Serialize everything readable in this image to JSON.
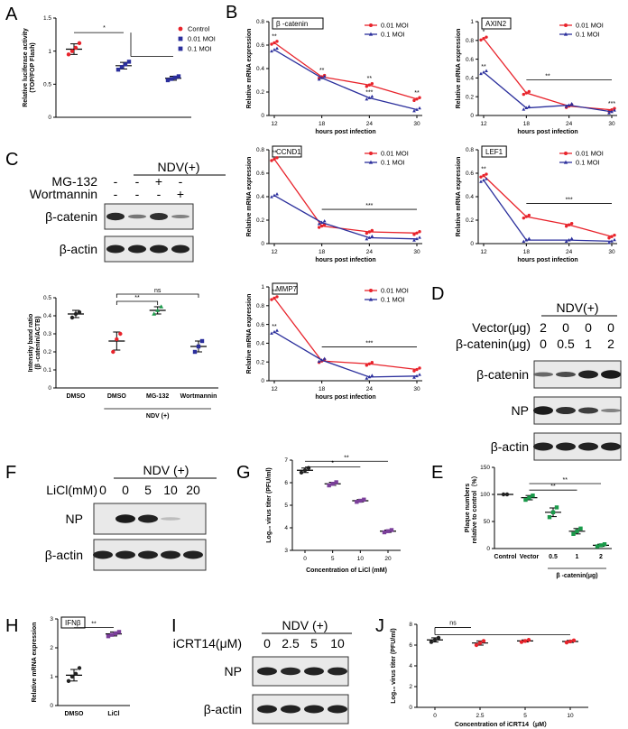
{
  "panels": {
    "A": "A",
    "B": "B",
    "C": "C",
    "D": "D",
    "E": "E",
    "F": "F",
    "G": "G",
    "H": "H",
    "I": "I",
    "J": "J"
  },
  "colors": {
    "red": "#e8232b",
    "blue": "#2b2f9c",
    "green": "#1a9a4a",
    "black": "#222222",
    "purple": "#7b3f9a"
  },
  "chart_data": [
    {
      "id": "A",
      "type": "scatter",
      "ylabel": "Relative luciferase activity\n(TOP/FOP Flash)",
      "ylim": [
        0,
        1.5
      ],
      "yticks": [
        0,
        0.5,
        1.0,
        1.5
      ],
      "legend": [
        {
          "name": "Control",
          "marker": "circle",
          "color": "red"
        },
        {
          "name": "0.01 MOI",
          "marker": "square",
          "color": "blue"
        },
        {
          "name": "0.1 MOI",
          "marker": "square",
          "color": "blue"
        }
      ],
      "groups": [
        {
          "name": "Control",
          "mean": 1.03,
          "sd": 0.08,
          "points": [
            0.95,
            1.0,
            1.05,
            1.12
          ],
          "color": "red",
          "marker": "circle"
        },
        {
          "name": "0.01 MOI",
          "mean": 0.78,
          "sd": 0.05,
          "points": [
            0.72,
            0.76,
            0.8,
            0.84
          ],
          "color": "blue",
          "marker": "square"
        },
        {
          "name": "0.1 MOI",
          "mean": 0.59,
          "sd": 0.03,
          "points": [
            0.56,
            0.58,
            0.6,
            0.62
          ],
          "color": "blue",
          "marker": "square"
        }
      ],
      "sig": [
        {
          "text": "*"
        }
      ]
    },
    {
      "id": "B1",
      "type": "line",
      "box": "β -catenin",
      "ylabel": "Relative mRNA expression",
      "xlabel": "hours post infection",
      "x": [
        12,
        18,
        24,
        30
      ],
      "ylim": [
        0,
        0.8
      ],
      "yticks": [
        0,
        0.2,
        0.4,
        0.6,
        0.8
      ],
      "series": [
        {
          "name": "0.01 MOI",
          "values": [
            0.62,
            0.33,
            0.26,
            0.14
          ],
          "color": "red",
          "marker": "circle"
        },
        {
          "name": "0.1 MOI",
          "values": [
            0.56,
            0.32,
            0.15,
            0.05
          ],
          "color": "blue",
          "marker": "triangle"
        }
      ],
      "sig": [
        {
          "x": 12,
          "text": "**"
        },
        {
          "x": 18,
          "text": "**"
        },
        {
          "x": 24,
          "text": "**"
        },
        {
          "x": 24,
          "text": "***",
          "low": true
        },
        {
          "x": 30,
          "text": "**"
        }
      ]
    },
    {
      "id": "B2",
      "type": "line",
      "box": "AXIN2",
      "ylabel": "Relative mRNA expression",
      "xlabel": "hours post infection",
      "x": [
        12,
        18,
        24,
        30
      ],
      "ylim": [
        0,
        1.0
      ],
      "yticks": [
        0,
        0.2,
        0.4,
        0.6,
        0.8,
        1.0
      ],
      "series": [
        {
          "name": "0.01 MOI",
          "values": [
            0.82,
            0.24,
            0.1,
            0.06
          ],
          "color": "red",
          "marker": "circle"
        },
        {
          "name": "0.1 MOI",
          "values": [
            0.46,
            0.08,
            0.11,
            0.04
          ],
          "color": "blue",
          "marker": "triangle"
        }
      ],
      "sig": [
        {
          "x": 12,
          "text": "*"
        },
        {
          "x": 12,
          "text": "**",
          "low": true
        },
        {
          "x": 21,
          "text": "**",
          "bar": true
        },
        {
          "x": 30,
          "text": "***"
        }
      ]
    },
    {
      "id": "B3",
      "type": "line",
      "box": "CCND1",
      "ylabel": "Relative mRNA expression",
      "xlabel": "hours post infection",
      "x": [
        12,
        18,
        24,
        30
      ],
      "ylim": [
        0,
        0.8
      ],
      "yticks": [
        0,
        0.2,
        0.4,
        0.6,
        0.8
      ],
      "series": [
        {
          "name": "0.01 MOI",
          "values": [
            0.72,
            0.15,
            0.1,
            0.09
          ],
          "color": "red",
          "marker": "circle"
        },
        {
          "name": "0.1 MOI",
          "values": [
            0.41,
            0.18,
            0.05,
            0.04
          ],
          "color": "blue",
          "marker": "triangle"
        }
      ],
      "sig": [
        {
          "x": 12,
          "text": "**"
        },
        {
          "x": 24,
          "text": "***",
          "bar": true
        }
      ]
    },
    {
      "id": "B4",
      "type": "line",
      "box": "LEF1",
      "ylabel": "Relative mRNA expression",
      "xlabel": "hours post infection",
      "x": [
        12,
        18,
        24,
        30
      ],
      "ylim": [
        0,
        0.8
      ],
      "yticks": [
        0,
        0.2,
        0.4,
        0.6,
        0.8
      ],
      "series": [
        {
          "name": "0.01 MOI",
          "values": [
            0.58,
            0.23,
            0.16,
            0.06
          ],
          "color": "red",
          "marker": "circle"
        },
        {
          "name": "0.1 MOI",
          "values": [
            0.54,
            0.03,
            0.03,
            0.02
          ],
          "color": "blue",
          "marker": "triangle"
        }
      ],
      "sig": [
        {
          "x": 12,
          "text": "**"
        },
        {
          "x": 24,
          "text": "***",
          "bar": true
        }
      ]
    },
    {
      "id": "B5",
      "type": "line",
      "box": "MMP7",
      "ylabel": "Relative mRNA expression",
      "xlabel": "hours post infection",
      "x": [
        12,
        18,
        24,
        30
      ],
      "ylim": [
        0,
        1.0
      ],
      "yticks": [
        0,
        0.2,
        0.4,
        0.6,
        0.8,
        1.0
      ],
      "series": [
        {
          "name": "0.01 MOI",
          "values": [
            0.88,
            0.21,
            0.18,
            0.12
          ],
          "color": "red",
          "marker": "circle"
        },
        {
          "name": "0.1 MOI",
          "values": [
            0.52,
            0.22,
            0.04,
            0.05
          ],
          "color": "blue",
          "marker": "triangle"
        }
      ],
      "sig": [
        {
          "x": 12,
          "text": "**"
        },
        {
          "x": 12,
          "text": "**",
          "low": true
        },
        {
          "x": 24,
          "text": "***",
          "bar": true
        }
      ]
    },
    {
      "id": "C2",
      "type": "scatter",
      "ylabel": "Intensity band ratio\n(β -catenin/ACTB)",
      "ylim": [
        0,
        0.5
      ],
      "yticks": [
        0,
        0.1,
        0.2,
        0.3,
        0.4,
        0.5
      ],
      "groups": [
        {
          "name": "DMSO",
          "mean": 0.41,
          "sd": 0.02,
          "points": [
            0.39,
            0.41,
            0.42
          ],
          "color": "black",
          "marker": "circle"
        },
        {
          "name": "DMSO",
          "mean": 0.26,
          "sd": 0.05,
          "points": [
            0.2,
            0.27,
            0.3
          ],
          "color": "red",
          "marker": "circle"
        },
        {
          "name": "MG-132",
          "mean": 0.43,
          "sd": 0.02,
          "points": [
            0.41,
            0.43,
            0.45
          ],
          "color": "green",
          "marker": "triangle"
        },
        {
          "name": "Wortmannin",
          "mean": 0.23,
          "sd": 0.03,
          "points": [
            0.2,
            0.23,
            0.26
          ],
          "color": "blue",
          "marker": "square"
        }
      ],
      "group_label": "NDV (+)",
      "sig": [
        {
          "text": "**"
        },
        {
          "text": "ns"
        }
      ]
    },
    {
      "id": "G",
      "type": "scatter",
      "ylabel": "Log₁₀ virus titer (PFU/ml)",
      "xlabel": "Concentration of LiCl (mM)",
      "ylim": [
        3,
        7
      ],
      "yticks": [
        3,
        4,
        5,
        6,
        7
      ],
      "groups": [
        {
          "name": "0",
          "mean": 6.55,
          "sd": 0.1,
          "points": [
            6.45,
            6.55,
            6.65
          ],
          "color": "black",
          "marker": "circle"
        },
        {
          "name": "5",
          "mean": 5.95,
          "sd": 0.07,
          "points": [
            5.88,
            5.95,
            6.02
          ],
          "color": "purple",
          "marker": "square"
        },
        {
          "name": "10",
          "mean": 5.2,
          "sd": 0.05,
          "points": [
            5.15,
            5.2,
            5.25
          ],
          "color": "purple",
          "marker": "square"
        },
        {
          "name": "20",
          "mean": 3.85,
          "sd": 0.05,
          "points": [
            3.8,
            3.85,
            3.9
          ],
          "color": "purple",
          "marker": "square"
        }
      ],
      "sig": [
        {
          "text": "**"
        },
        {
          "text": "*"
        }
      ]
    },
    {
      "id": "E",
      "type": "scatter",
      "ylabel": "Plaque numbers\nrelative to control（%）",
      "ylim": [
        0,
        150
      ],
      "yticks": [
        0,
        50,
        100,
        150
      ],
      "groups": [
        {
          "name": "Control",
          "mean": 100,
          "sd": 0,
          "points": [
            100,
            100
          ],
          "color": "black",
          "marker": "circle"
        },
        {
          "name": "Vector",
          "mean": 94,
          "sd": 4,
          "points": [
            90,
            94,
            98
          ],
          "color": "green",
          "marker": "square"
        },
        {
          "name": "0.5",
          "mean": 67,
          "sd": 8,
          "points": [
            58,
            67,
            76
          ],
          "color": "green",
          "marker": "square"
        },
        {
          "name": "1",
          "mean": 32,
          "sd": 5,
          "points": [
            27,
            32,
            37
          ],
          "color": "green",
          "marker": "square"
        },
        {
          "name": "2",
          "mean": 6,
          "sd": 2,
          "points": [
            4,
            6,
            8
          ],
          "color": "green",
          "marker": "square"
        }
      ],
      "group_label": "β -catenin(μg)",
      "sig": [
        {
          "text": "**"
        },
        {
          "text": "**"
        }
      ]
    },
    {
      "id": "H",
      "type": "scatter",
      "box": "IFNβ",
      "ylabel": "Relative mRNA expression",
      "ylim": [
        0,
        3
      ],
      "yticks": [
        0,
        1,
        2,
        3
      ],
      "groups": [
        {
          "name": "DMSO",
          "mean": 1.05,
          "sd": 0.2,
          "points": [
            0.85,
            1.0,
            1.1,
            1.3
          ],
          "color": "black",
          "marker": "circle"
        },
        {
          "name": "LiCl",
          "mean": 2.48,
          "sd": 0.07,
          "points": [
            2.4,
            2.45,
            2.5,
            2.55
          ],
          "color": "purple",
          "marker": "square"
        }
      ],
      "sig": [
        {
          "text": "**"
        }
      ]
    },
    {
      "id": "J",
      "type": "scatter",
      "ylabel": "Log₁₀ virus titer (PFU/ml)",
      "xlabel": "Concentration of iCRT14（μM）",
      "ylim": [
        0,
        8
      ],
      "yticks": [
        0,
        2,
        4,
        6,
        8
      ],
      "groups": [
        {
          "name": "0",
          "mean": 6.5,
          "sd": 0.2,
          "points": [
            6.3,
            6.5,
            6.7
          ],
          "color": "black",
          "marker": "circle"
        },
        {
          "name": "2.5",
          "mean": 6.2,
          "sd": 0.2,
          "points": [
            6.0,
            6.2,
            6.4
          ],
          "color": "red",
          "marker": "circle"
        },
        {
          "name": "5",
          "mean": 6.4,
          "sd": 0.1,
          "points": [
            6.3,
            6.4,
            6.5
          ],
          "color": "red",
          "marker": "circle"
        },
        {
          "name": "10",
          "mean": 6.35,
          "sd": 0.1,
          "points": [
            6.25,
            6.35,
            6.45
          ],
          "color": "red",
          "marker": "circle"
        }
      ],
      "sig": [
        {
          "text": "ns"
        }
      ]
    }
  ],
  "blots": {
    "C": {
      "header": "NDV(+)",
      "treatments": [
        {
          "name": "MG-132",
          "marks": [
            "-",
            "-",
            "+",
            "-"
          ]
        },
        {
          "name": "Wortmannin",
          "marks": [
            "-",
            "-",
            "-",
            "+"
          ]
        }
      ],
      "rows": [
        {
          "name": "β-catenin",
          "bands": [
            0.85,
            0.45,
            0.8,
            0.4
          ]
        },
        {
          "name": "β-actin",
          "bands": [
            0.9,
            0.9,
            0.9,
            0.9
          ]
        }
      ]
    },
    "D": {
      "header": "NDV(+)",
      "treatments": [
        {
          "name": "Vector(μg)",
          "marks": [
            "2",
            "0",
            "0",
            "0"
          ]
        },
        {
          "name": "β-catenin(μg)",
          "marks": [
            "0",
            "0.5",
            "1",
            "2"
          ]
        }
      ],
      "rows": [
        {
          "name": "β-catenin",
          "bands": [
            0.5,
            0.6,
            0.9,
            0.95
          ]
        },
        {
          "name": "NP",
          "bands": [
            0.95,
            0.8,
            0.7,
            0.4
          ]
        },
        {
          "name": "β-actin",
          "bands": [
            0.9,
            0.9,
            0.9,
            0.9
          ]
        }
      ]
    },
    "F": {
      "header": "NDV (+)",
      "treatment_label": "LiCl(mM)",
      "marks": [
        "0",
        "0",
        "5",
        "10",
        "20"
      ],
      "rows": [
        {
          "name": "NP",
          "bands": [
            0,
            0.95,
            0.9,
            0.1,
            0
          ]
        },
        {
          "name": "β-actin",
          "bands": [
            0.9,
            0.9,
            0.9,
            0.9,
            0.9
          ]
        }
      ]
    },
    "I": {
      "header": "NDV (+)",
      "treatment_label": "iCRT14(μM)",
      "marks": [
        "0",
        "2.5",
        "5",
        "10"
      ],
      "rows": [
        {
          "name": "NP",
          "bands": [
            0.9,
            0.85,
            0.9,
            0.88
          ]
        },
        {
          "name": "β-actin",
          "bands": [
            0.9,
            0.9,
            0.9,
            0.9
          ]
        }
      ]
    }
  }
}
